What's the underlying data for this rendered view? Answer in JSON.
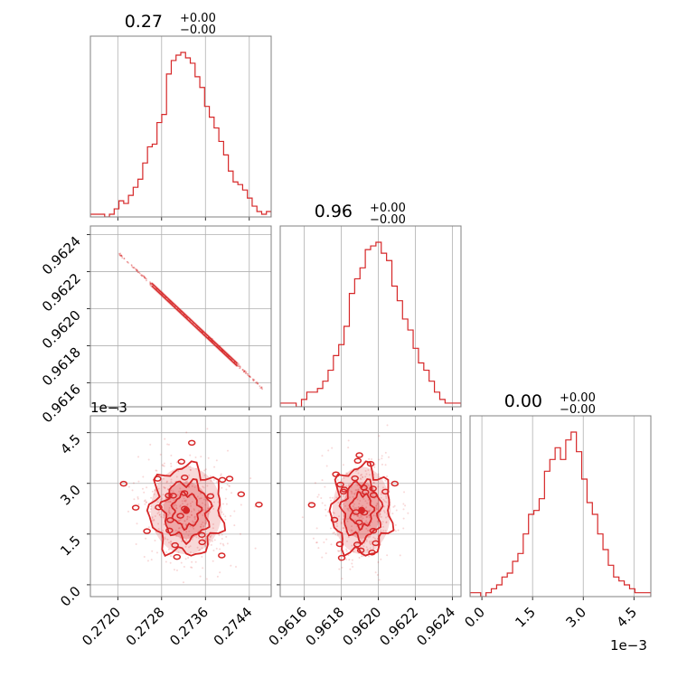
{
  "chart_data": {
    "type": "corner",
    "color": "#d62728",
    "grid": true,
    "parameters": [
      {
        "title_value": "0.27",
        "title_plus": "+0.00",
        "title_minus": "−0.00"
      },
      {
        "title_value": "0.96",
        "title_plus": "+0.00",
        "title_minus": "−0.00"
      },
      {
        "title_value": "0.00",
        "title_plus": "+0.00",
        "title_minus": "−0.00"
      }
    ],
    "axes": {
      "p0": {
        "range": [
          0.2715,
          0.2748
        ],
        "ticks": [
          0.272,
          0.2728,
          0.2736,
          0.2744
        ],
        "tick_labels": [
          "0.2720",
          "0.2728",
          "0.2736",
          "0.2744"
        ]
      },
      "p1": {
        "range": [
          0.96147,
          0.962447
        ],
        "ticks": [
          0.9616,
          0.9618,
          0.962,
          0.9622,
          0.9624
        ],
        "tick_labels": [
          "0.9616",
          "0.9618",
          "0.9620",
          "0.9622",
          "0.9624"
        ]
      },
      "p2": {
        "range": [
          -0.35,
          5.0
        ],
        "ticks": [
          0.0,
          1.5,
          3.0,
          4.5
        ],
        "tick_labels": [
          "0.0",
          "1.5",
          "3.0",
          "4.5"
        ],
        "multiplier": "1e−3"
      }
    },
    "hist_p0": {
      "counts": [
        1,
        1,
        1,
        0,
        1,
        3,
        6,
        5,
        8,
        11,
        14,
        20,
        26,
        27,
        35,
        38,
        53,
        58,
        60,
        61,
        59,
        57,
        52,
        48,
        41,
        37,
        33,
        28,
        23,
        17,
        13,
        12,
        10,
        7,
        4,
        2,
        1,
        2
      ]
    },
    "hist_p1": {
      "counts": [
        1,
        1,
        1,
        0,
        2,
        4,
        4,
        5,
        7,
        10,
        14,
        17,
        22,
        31,
        35,
        38,
        43,
        44,
        45,
        42,
        40,
        33,
        29,
        24,
        21,
        16,
        12,
        10,
        7,
        4,
        2,
        1,
        1,
        1
      ]
    },
    "hist_p2": {
      "counts": [
        1,
        1,
        0,
        1,
        2,
        3,
        5,
        6,
        9,
        11,
        16,
        21,
        22,
        25,
        32,
        35,
        38,
        35,
        40,
        42,
        37,
        30,
        24,
        21,
        16,
        12,
        8,
        5,
        4,
        3,
        2,
        1,
        1,
        1
      ]
    },
    "scatter_p0_p1": {
      "line_start": [
        0.27202,
        0.962297
      ],
      "line_end": [
        0.27465,
        0.961567
      ],
      "dense_segment": [
        0.27262,
        0.27418
      ]
    },
    "scatter_p0_p2": {
      "center": [
        0.27325,
        2.2
      ],
      "spread": [
        0.00035,
        0.7
      ]
    },
    "scatter_p1_p2": {
      "center": [
        0.96191,
        2.2
      ],
      "spread": [
        8.5e-05,
        0.7
      ]
    }
  }
}
